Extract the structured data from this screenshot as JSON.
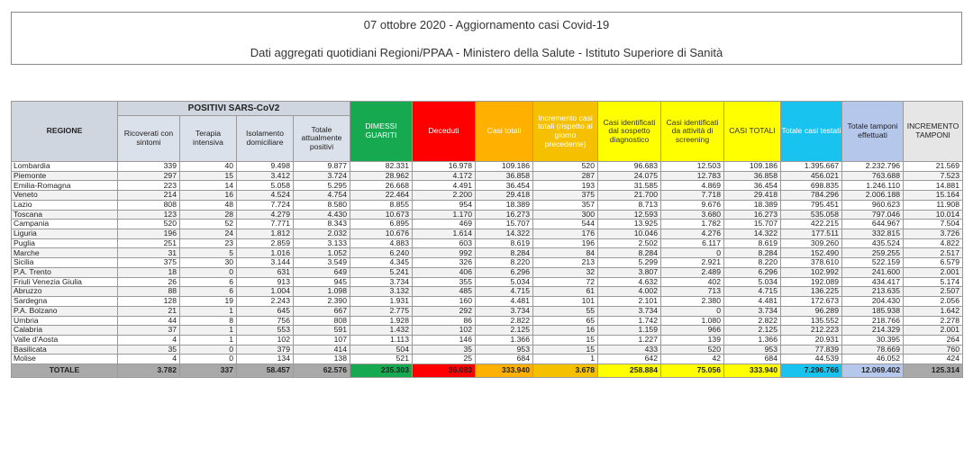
{
  "header": {
    "line1": "07 ottobre 2020 - Aggiornamento casi Covid-19",
    "line2": "Dati aggregati quotidiani Regioni/PPAA - Ministero della Salute - Istituto Superiore di Sanità"
  },
  "colors": {
    "dimessi": "#16a950",
    "deceduti": "#ff0000",
    "casi_totali": "#ffb000",
    "incremento": "#f4c000",
    "identificati": "#ffff00",
    "tamponi_testati": "#19c3f0",
    "tamponi_effettuati": "#b6c7ec"
  },
  "columns": {
    "regione": "REGIONE",
    "positivi_group": "POSITIVI SARS-CoV2",
    "ricoverati": "Ricoverati con sintomi",
    "terapia": "Terapia intensiva",
    "isolamento": "Isolamento domiciliare",
    "totale_positivi": "Totale attualmente positivi",
    "dimessi": "DIMESSI GUARITI",
    "deceduti": "Deceduti",
    "casi_totali": "Casi totali",
    "incremento": "Incremento casi totali (rispetto al giorno precedente)",
    "sospetto": "Casi identificati dal sospetto diagnostico",
    "screening": "Casi identificati da attività di screening",
    "casi_totali2": "CASI TOTALI",
    "casi_testati": "Totale casi testati",
    "tamponi": "Totale tamponi effettuati",
    "incremento_tamponi": "INCREMENTO TAMPONI"
  },
  "rows": [
    [
      "Lombardia",
      "339",
      "40",
      "9.498",
      "9.877",
      "82.331",
      "16.978",
      "109.186",
      "520",
      "96.683",
      "12.503",
      "109.186",
      "1.395.667",
      "2.232.796",
      "21.569"
    ],
    [
      "Piemonte",
      "297",
      "15",
      "3.412",
      "3.724",
      "28.962",
      "4.172",
      "36.858",
      "287",
      "24.075",
      "12.783",
      "36.858",
      "456.021",
      "763.688",
      "7.523"
    ],
    [
      "Emilia-Romagna",
      "223",
      "14",
      "5.058",
      "5.295",
      "26.668",
      "4.491",
      "36.454",
      "193",
      "31.585",
      "4.869",
      "36.454",
      "698.835",
      "1.246.110",
      "14.881"
    ],
    [
      "Veneto",
      "214",
      "16",
      "4.524",
      "4.754",
      "22.464",
      "2.200",
      "29.418",
      "375",
      "21.700",
      "7.718",
      "29.418",
      "784.296",
      "2.006.188",
      "15.164"
    ],
    [
      "Lazio",
      "808",
      "48",
      "7.724",
      "8.580",
      "8.855",
      "954",
      "18.389",
      "357",
      "8.713",
      "9.676",
      "18.389",
      "795.451",
      "960.623",
      "11.908"
    ],
    [
      "Toscana",
      "123",
      "28",
      "4.279",
      "4.430",
      "10.673",
      "1.170",
      "16.273",
      "300",
      "12.593",
      "3.680",
      "16.273",
      "535.058",
      "797.046",
      "10.014"
    ],
    [
      "Campania",
      "520",
      "52",
      "7.771",
      "8.343",
      "6.895",
      "469",
      "15.707",
      "544",
      "13.925",
      "1.782",
      "15.707",
      "422.215",
      "644.967",
      "7.504"
    ],
    [
      "Liguria",
      "196",
      "24",
      "1.812",
      "2.032",
      "10.676",
      "1.614",
      "14.322",
      "176",
      "10.046",
      "4.276",
      "14.322",
      "177.511",
      "332.815",
      "3.726"
    ],
    [
      "Puglia",
      "251",
      "23",
      "2.859",
      "3.133",
      "4.883",
      "603",
      "8.619",
      "196",
      "2.502",
      "6.117",
      "8.619",
      "309.260",
      "435.524",
      "4.822"
    ],
    [
      "Marche",
      "31",
      "5",
      "1.016",
      "1.052",
      "6.240",
      "992",
      "8.284",
      "84",
      "8.284",
      "0",
      "8.284",
      "152.490",
      "259.255",
      "2.517"
    ],
    [
      "Sicilia",
      "375",
      "30",
      "3.144",
      "3.549",
      "4.345",
      "326",
      "8.220",
      "213",
      "5.299",
      "2.921",
      "8.220",
      "378.610",
      "522.159",
      "6.579"
    ],
    [
      "P.A. Trento",
      "18",
      "0",
      "631",
      "649",
      "5.241",
      "406",
      "6.296",
      "32",
      "3.807",
      "2.489",
      "6.296",
      "102.992",
      "241.600",
      "2.001"
    ],
    [
      "Friuli Venezia Giulia",
      "26",
      "6",
      "913",
      "945",
      "3.734",
      "355",
      "5.034",
      "72",
      "4.632",
      "402",
      "5.034",
      "192.089",
      "434.417",
      "5.174"
    ],
    [
      "Abruzzo",
      "88",
      "6",
      "1.004",
      "1.098",
      "3.132",
      "485",
      "4.715",
      "61",
      "4.002",
      "713",
      "4.715",
      "136.225",
      "213.635",
      "2.507"
    ],
    [
      "Sardegna",
      "128",
      "19",
      "2.243",
      "2.390",
      "1.931",
      "160",
      "4.481",
      "101",
      "2.101",
      "2.380",
      "4.481",
      "172.673",
      "204.430",
      "2.056"
    ],
    [
      "P.A. Bolzano",
      "21",
      "1",
      "645",
      "667",
      "2.775",
      "292",
      "3.734",
      "55",
      "3.734",
      "0",
      "3.734",
      "96.289",
      "185.938",
      "1.642"
    ],
    [
      "Umbria",
      "44",
      "8",
      "756",
      "808",
      "1.928",
      "86",
      "2.822",
      "65",
      "1.742",
      "1.080",
      "2.822",
      "135.552",
      "218.766",
      "2.278"
    ],
    [
      "Calabria",
      "37",
      "1",
      "553",
      "591",
      "1.432",
      "102",
      "2.125",
      "16",
      "1.159",
      "966",
      "2.125",
      "212.223",
      "214.329",
      "2.001"
    ],
    [
      "Valle d'Aosta",
      "4",
      "1",
      "102",
      "107",
      "1.113",
      "146",
      "1.366",
      "15",
      "1.227",
      "139",
      "1.366",
      "20.931",
      "30.395",
      "264"
    ],
    [
      "Basilicata",
      "35",
      "0",
      "379",
      "414",
      "504",
      "35",
      "953",
      "15",
      "433",
      "520",
      "953",
      "77.839",
      "78.669",
      "760"
    ],
    [
      "Molise",
      "4",
      "0",
      "134",
      "138",
      "521",
      "25",
      "684",
      "1",
      "642",
      "42",
      "684",
      "44.539",
      "46.052",
      "424"
    ]
  ],
  "totals": [
    "TOTALE",
    "3.782",
    "337",
    "58.457",
    "62.576",
    "235.303",
    "36.083",
    "333.940",
    "3.678",
    "258.884",
    "75.056",
    "333.940",
    "7.296.766",
    "12.069.402",
    "125.314"
  ]
}
